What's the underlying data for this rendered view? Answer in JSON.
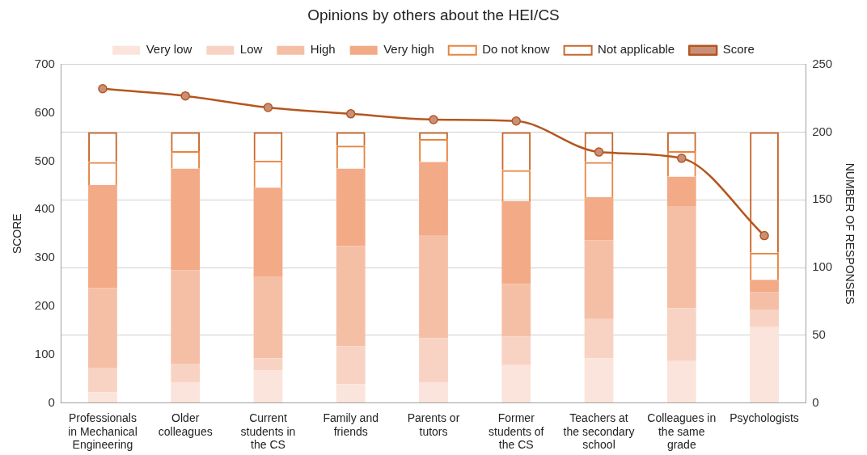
{
  "chart_data": {
    "type": "bar",
    "title": "Opinions by others about the HEI/CS",
    "ylabel": "SCORE",
    "y2label": "NUMBER OF RESPONSES",
    "categories": [
      "Professionals in Mechanical Engineering",
      "Older colleagues",
      "Current students in the CS",
      "Family and friends",
      "Parents or tutors",
      "Former students of the CS",
      "Teachers at the secondary school",
      "Colleagues in the same grade",
      "Psychologists"
    ],
    "stacked": true,
    "grid": "y",
    "legend": "top",
    "marker": "circle",
    "line_style": "solid",
    "ylim": [
      0,
      700
    ],
    "yticks": [
      0,
      100,
      200,
      300,
      400,
      500,
      600,
      700
    ],
    "y2lim": [
      0,
      250
    ],
    "y2ticks": [
      0,
      50,
      100,
      150,
      200,
      250
    ],
    "series": [
      {
        "name": "Very low",
        "color": "#fbe4db",
        "axis": "y2",
        "values": [
          8,
          15,
          24,
          14,
          15,
          28,
          33,
          31,
          56
        ]
      },
      {
        "name": "Low",
        "color": "#f8d3c4",
        "axis": "y2",
        "values": [
          18,
          14,
          9,
          28,
          33,
          21,
          29,
          39,
          13
        ]
      },
      {
        "name": "High",
        "color": "#f5bfa6",
        "axis": "y2",
        "values": [
          59,
          69,
          60,
          74,
          76,
          39,
          58,
          75,
          13
        ]
      },
      {
        "name": "Very high",
        "color": "#f3aa86",
        "axis": "y2",
        "values": [
          76,
          75,
          66,
          57,
          54,
          61,
          32,
          22,
          9
        ]
      },
      {
        "name": "Do not know",
        "color": "#e8843e",
        "axis": "y2",
        "values": [
          17,
          13,
          20,
          17,
          17,
          23,
          26,
          19,
          20
        ]
      },
      {
        "name": "Not applicable",
        "color": "#c8682e",
        "axis": "y2",
        "values": [
          22,
          14,
          21,
          10,
          5,
          28,
          22,
          14,
          89
        ]
      },
      {
        "name": "Score",
        "type": "line",
        "color": "#b5561e",
        "axis": "y",
        "values": [
          650,
          635,
          611,
          598,
          586,
          583,
          519,
          506,
          346
        ]
      }
    ]
  }
}
